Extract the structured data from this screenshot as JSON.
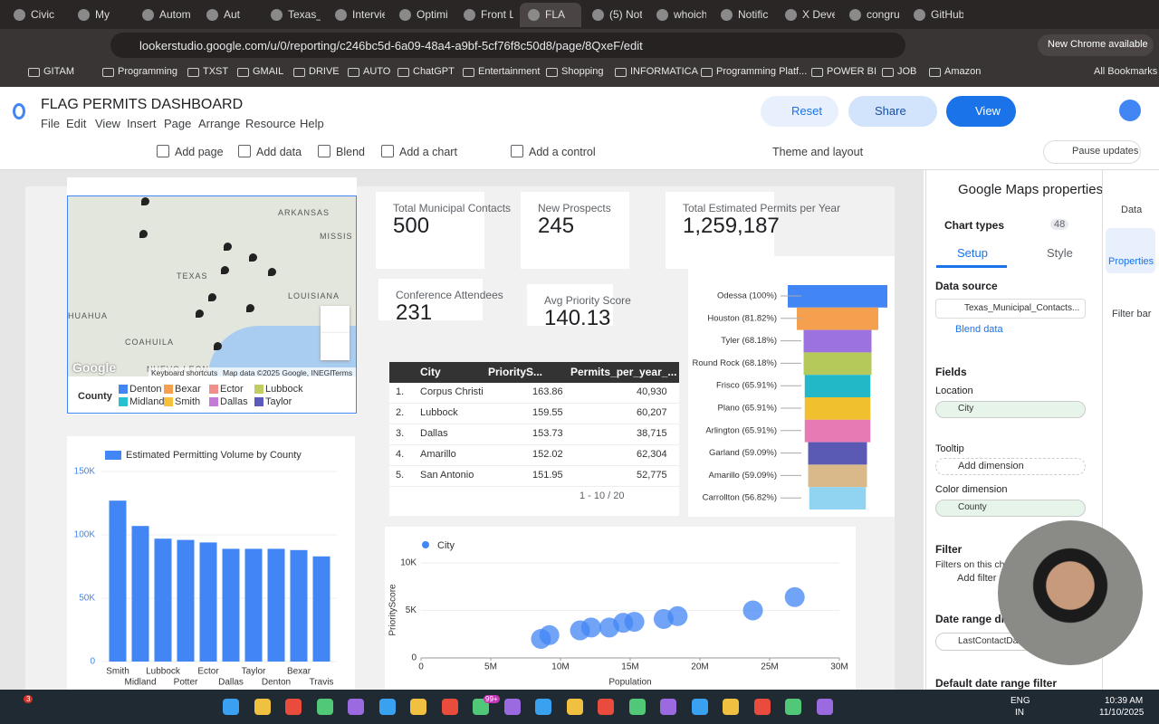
{
  "browser": {
    "tabs": [
      "Civic",
      "My",
      "Autom",
      "Aut",
      "Texas_M",
      "Intervie",
      "Optimi",
      "Front L",
      "FLA",
      "(5) Not",
      "whoich",
      "Notific",
      "X Deve",
      "congru",
      "GitHub"
    ],
    "url": "lookerstudio.google.com/u/0/reporting/c246bc5d-6a09-48a4-a9bf-5cf76f8c50d8/page/8QxeF/edit",
    "update_notice": "New Chrome available",
    "bookmarks": [
      "GITAM",
      "Programming",
      "TXST",
      "GMAIL",
      "DRIVE",
      "AUTO",
      "ChatGPT",
      "Entertainment",
      "Shopping",
      "INFORMATICA",
      "Programming Platf...",
      "POWER BI",
      "JOB",
      "Amazon"
    ],
    "all_bookmarks": "All Bookmarks"
  },
  "app": {
    "title": "FLAG PERMITS DASHBOARD",
    "menu": [
      "File",
      "Edit",
      "View",
      "Insert",
      "Page",
      "Arrange",
      "Resource",
      "Help"
    ],
    "buttons": {
      "reset": "Reset",
      "share": "Share",
      "view": "View"
    },
    "toolbar": [
      "Add page",
      "Add data",
      "Blend",
      "Add a chart",
      "Add a control",
      "Theme and layout"
    ],
    "pause_updates": "Pause updates"
  },
  "map": {
    "places": [
      "ARKANSAS",
      "MISSIS",
      "TEXAS",
      "LOUISIANA",
      "HUAHUA",
      "COAHUILA",
      "NUEVO LEON"
    ],
    "logo": "Google",
    "footer": [
      "Keyboard shortcuts",
      "Map data ©2025 Google, INEGI",
      "Terms"
    ],
    "legend_title": "County",
    "legend": [
      {
        "name": "Denton",
        "color": "#4285f4"
      },
      {
        "name": "Bexar",
        "color": "#f4a04f"
      },
      {
        "name": "Ector",
        "color": "#f08e8a"
      },
      {
        "name": "Lubbock",
        "color": "#bfcd63"
      },
      {
        "name": "Midland",
        "color": "#25c1d3"
      },
      {
        "name": "Smith",
        "color": "#f5c13b"
      },
      {
        "name": "Dallas",
        "color": "#c57ad6"
      },
      {
        "name": "Taylor",
        "color": "#5b5bbd"
      }
    ]
  },
  "scorecards": [
    {
      "label": "Total Municipal Contacts",
      "value": "500"
    },
    {
      "label": "New Prospects",
      "value": "245"
    },
    {
      "label": "Total Estimated Permits per Year",
      "value": "1,259,187"
    },
    {
      "label": "Conference Attendees",
      "value": "231"
    },
    {
      "label": "Avg Priority Score",
      "value": "140.13"
    }
  ],
  "table": {
    "columns": [
      "City",
      "PriorityS...",
      "Permits_per_year_..."
    ],
    "rows": [
      [
        "1.",
        "Corpus Christi",
        "163.86",
        "40,930"
      ],
      [
        "2.",
        "Lubbock",
        "159.55",
        "60,207"
      ],
      [
        "3.",
        "Dallas",
        "153.73",
        "38,715"
      ],
      [
        "4.",
        "Amarillo",
        "152.02",
        "62,304"
      ],
      [
        "5.",
        "San Antonio",
        "151.95",
        "52,775"
      ]
    ],
    "pagination": "1 - 10 / 20"
  },
  "funnel": {
    "type": "funnel",
    "labels": [
      "Odessa (100%)",
      "Houston (81.82%)",
      "Tyler (68.18%)",
      "Round Rock (68.18%)",
      "Frisco (65.91%)",
      "Plano (65.91%)",
      "Arlington (65.91%)",
      "Garland (59.09%)",
      "Amarillo (59.09%)",
      "Carrollton (56.82%)"
    ],
    "values": [
      100,
      81.82,
      68.18,
      68.18,
      65.91,
      65.91,
      65.91,
      59.09,
      59.09,
      56.82
    ],
    "colors": [
      "#4285f4",
      "#f4a04f",
      "#9b72e0",
      "#b5c95a",
      "#22b8c8",
      "#f0c02e",
      "#e57ab4",
      "#5a5ab5",
      "#d9b98a",
      "#90d4f2"
    ]
  },
  "bar_chart": {
    "type": "bar",
    "categories": [
      "Smith",
      "Midland",
      "Lubbock",
      "Potter",
      "Ector",
      "Dallas",
      "Taylor",
      "Denton",
      "Bexar",
      "Travis"
    ],
    "series": [
      {
        "name": "Estimated Permitting Volume by County",
        "color": "#4285f4",
        "values": [
          127000,
          107000,
          97000,
          96000,
          94000,
          89000,
          89000,
          89000,
          88000,
          83000
        ]
      }
    ],
    "ylim": [
      0,
      150000
    ],
    "yticks": [
      0,
      {
        "value": 50000,
        "label": "50K"
      },
      {
        "value": 100000,
        "label": "100K"
      },
      {
        "value": 150000,
        "label": "150K"
      }
    ]
  },
  "scatter": {
    "type": "scatter",
    "series": [
      {
        "name": "City",
        "color": "#4285f4",
        "x": [
          8600000,
          9200000,
          11400000,
          12200000,
          13500000,
          14500000,
          15300000,
          17400000,
          18400000,
          23800000,
          26800000
        ],
        "values": [
          2000,
          2400,
          2900,
          3200,
          3200,
          3700,
          3800,
          4100,
          4400,
          5000,
          6400
        ]
      }
    ],
    "xlim": [
      0,
      30000000
    ],
    "xticks": [
      0,
      {
        "value": 5000000,
        "label": "5M"
      },
      {
        "value": 10000000,
        "label": "10M"
      },
      {
        "value": 15000000,
        "label": "15M"
      },
      {
        "value": 20000000,
        "label": "20M"
      },
      {
        "value": 25000000,
        "label": "25M"
      },
      {
        "value": 30000000,
        "label": "30M"
      }
    ],
    "ylim": [
      0,
      10000
    ],
    "yticks": [
      0,
      {
        "value": 5000,
        "label": "5K"
      },
      {
        "value": 10000,
        "label": "10K"
      }
    ],
    "xlabel": "Population",
    "ylabel": "PriorityScore"
  },
  "properties": {
    "title": "Google Maps properties",
    "chart_types": "Chart types",
    "chart_types_count": "48",
    "tabs": [
      "Setup",
      "Style"
    ],
    "data_source_label": "Data source",
    "data_source": "Texas_Municipal_Contacts...",
    "blend": "Blend data",
    "fields": "Fields",
    "location": "Location",
    "location_field": "City",
    "tooltip": "Tooltip",
    "add_dimension": "Add dimension",
    "color_dimension": "Color dimension",
    "color_field": "County",
    "filter": "Filter",
    "filter_note": "Filters on this cha",
    "add_filter": "Add filter",
    "date_range": "Date range di",
    "date_field": "LastContactDate",
    "default_date": "Default date range filter"
  },
  "side_rail": [
    "Data",
    "Properties",
    "Filter bar"
  ],
  "taskbar": {
    "badges": [
      "3",
      "99+"
    ],
    "lang": [
      "ENG",
      "IN"
    ],
    "time": "10:39 AM",
    "date": "11/10/2025"
  }
}
